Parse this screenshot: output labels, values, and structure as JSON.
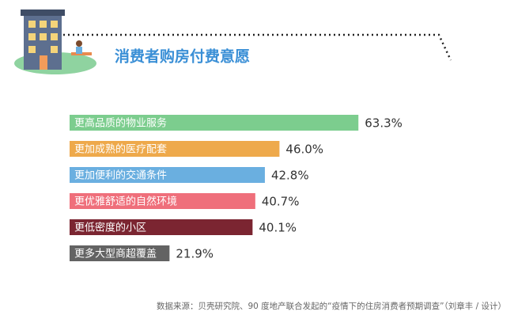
{
  "chart_data": {
    "type": "bar",
    "orientation": "horizontal",
    "title": "消费者购房付费意愿",
    "categories": [
      "更高品质的物业服务",
      "更加成熟的医疗配套",
      "更加便利的交通条件",
      "更优雅舒适的自然环境",
      "更低密度的小区",
      "更多大型商超覆盖"
    ],
    "values": [
      63.3,
      46.0,
      42.8,
      40.7,
      40.1,
      21.9
    ],
    "value_labels": [
      "63.3%",
      "46.0%",
      "42.8%",
      "40.7%",
      "40.1%",
      "21.9%"
    ],
    "colors": [
      "#7ccd8e",
      "#eea94b",
      "#6aafe0",
      "#ef6f7b",
      "#7b2531",
      "#636363"
    ],
    "source": "数据来源：贝壳研究院、90 度地产联合发起的“疫情下的住房消费者预期调查”（刘章丰 / 设计）"
  }
}
